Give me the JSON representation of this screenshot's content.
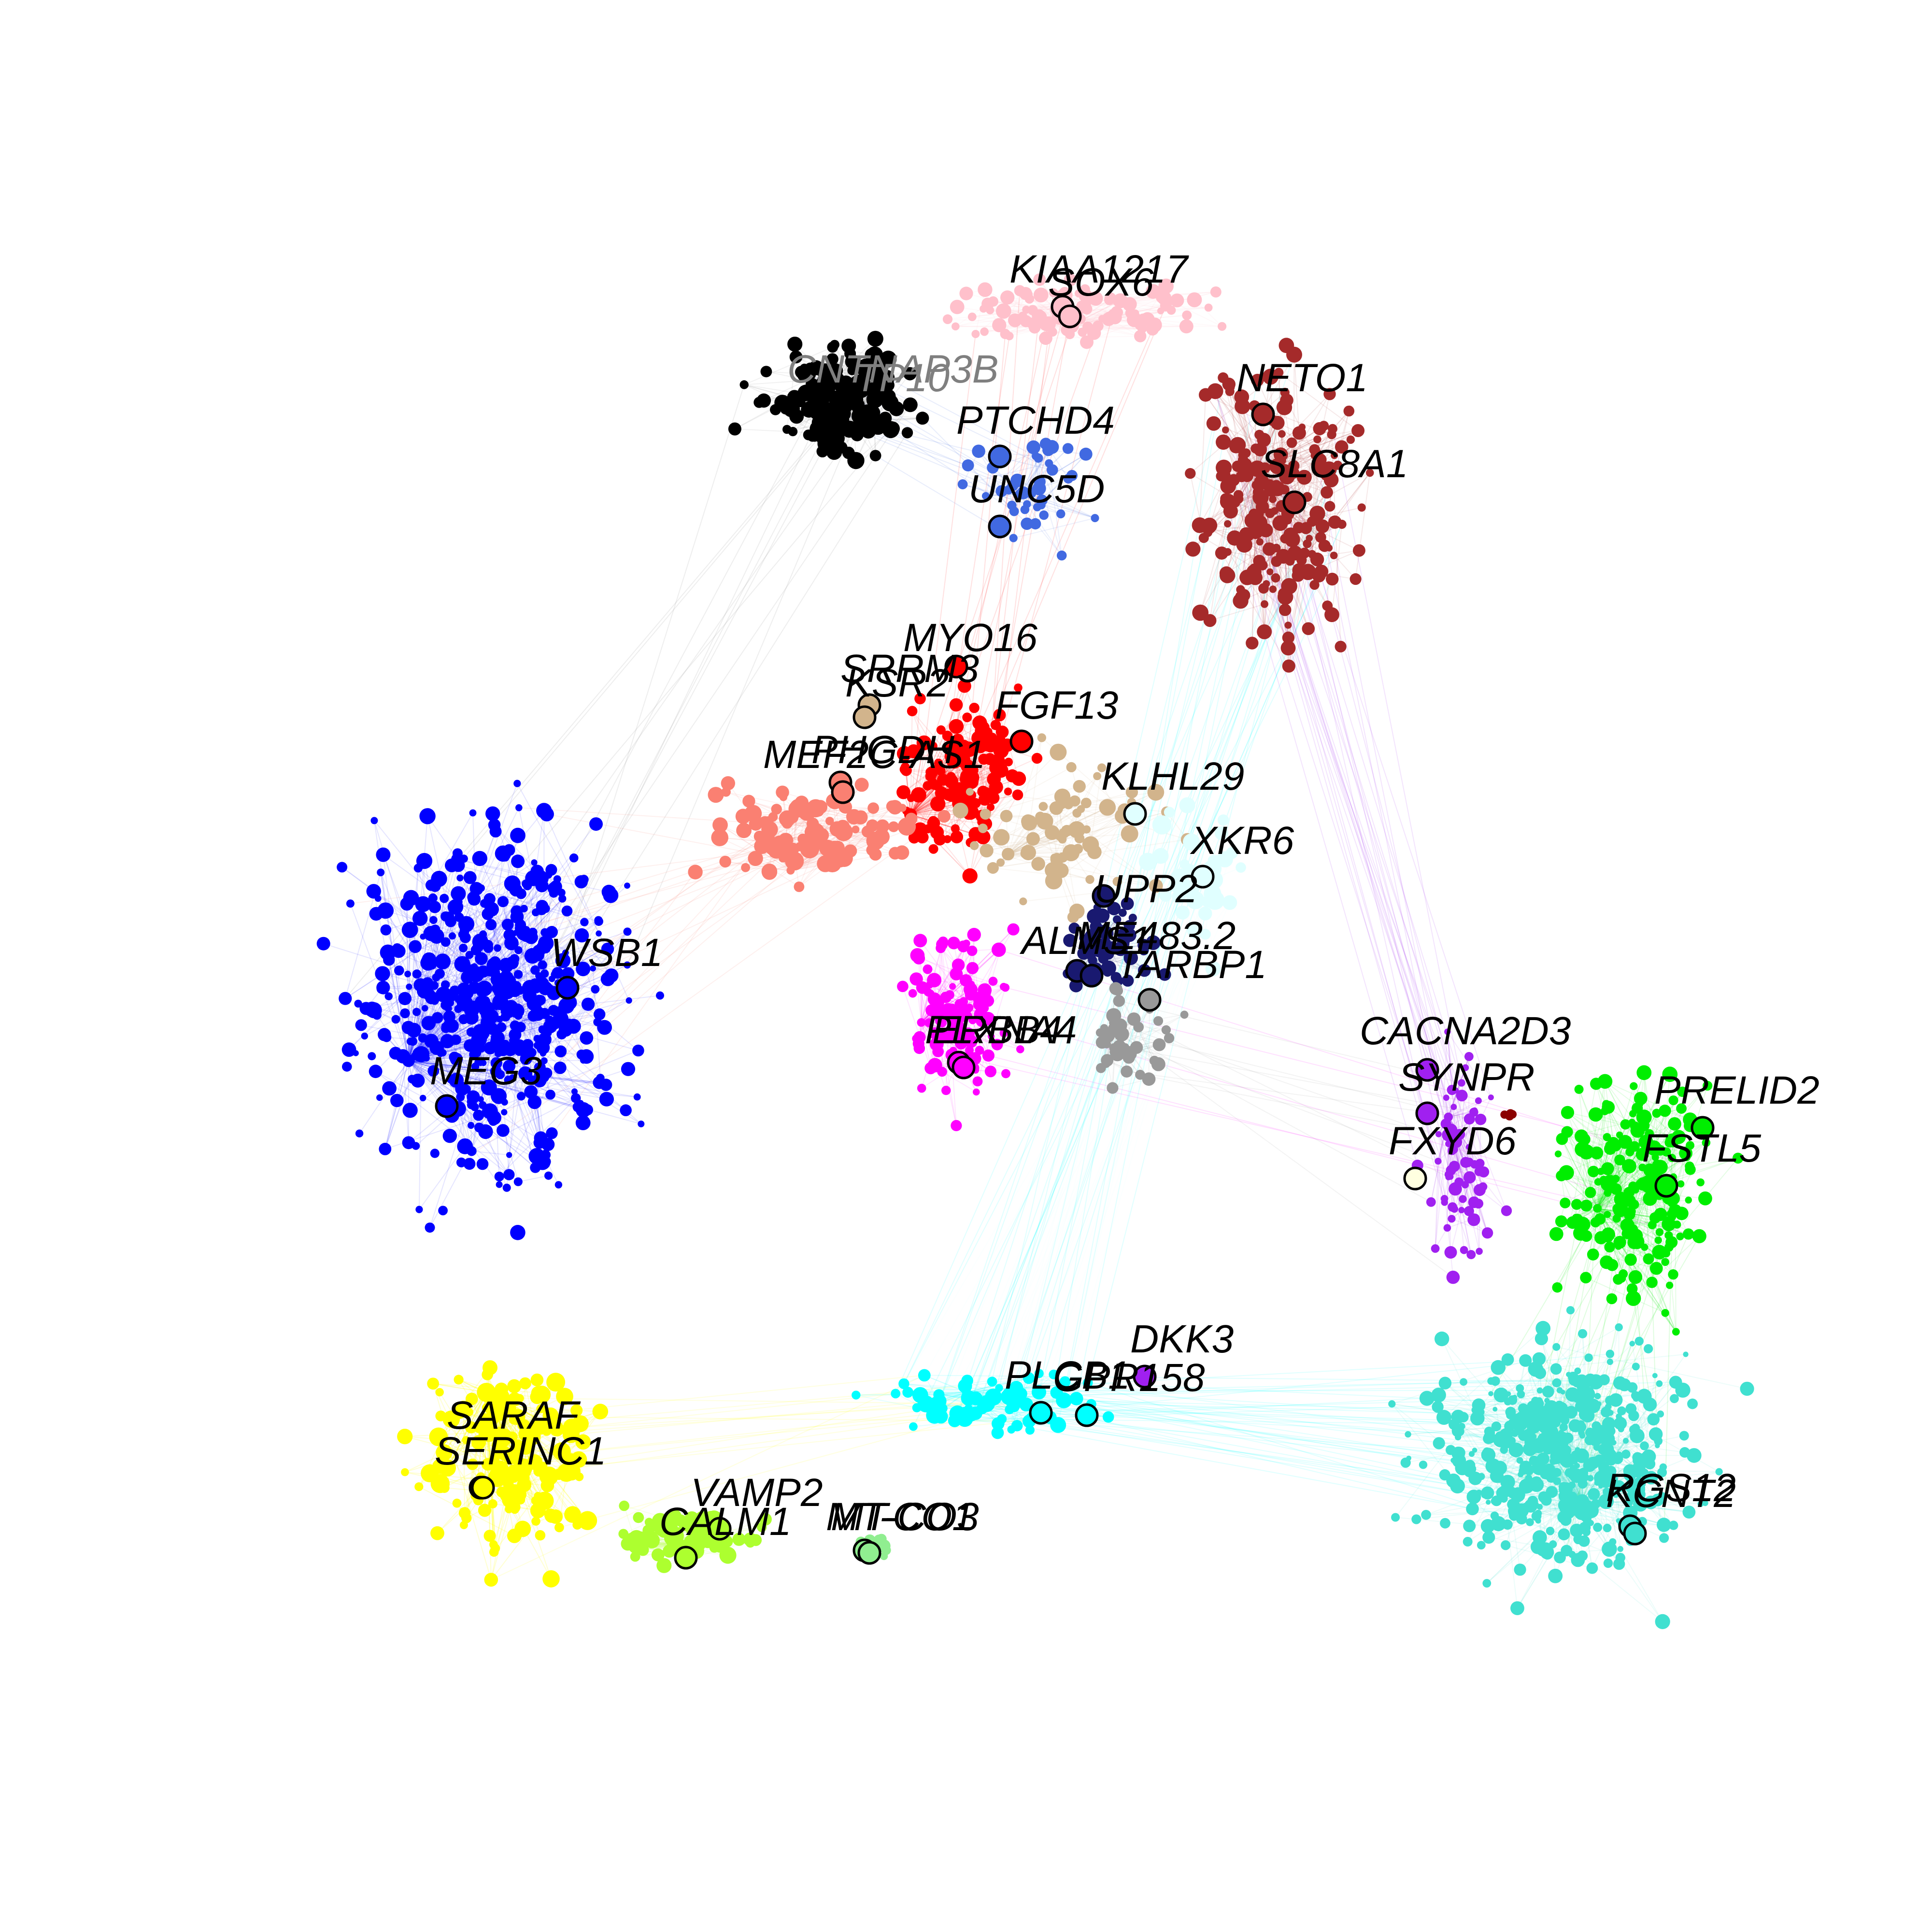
{
  "diagram": {
    "type": "gene-coexpression-network",
    "modules": [
      {
        "name": "black",
        "color": "#000000"
      },
      {
        "name": "pink",
        "color": "#ffc0cb"
      },
      {
        "name": "brown",
        "color": "#a52a2a"
      },
      {
        "name": "royalblue",
        "color": "#4169e1"
      },
      {
        "name": "cyan",
        "color": "#00ffff"
      },
      {
        "name": "red",
        "color": "#ff0000"
      },
      {
        "name": "tan",
        "color": "#d2b48c"
      },
      {
        "name": "salmon",
        "color": "#fa8072"
      },
      {
        "name": "midnightblue",
        "color": "#191970"
      },
      {
        "name": "lightcyan",
        "color": "#e0ffff"
      },
      {
        "name": "magenta",
        "color": "#ff00ff"
      },
      {
        "name": "grey60",
        "color": "#999999"
      },
      {
        "name": "blue",
        "color": "#0000ff"
      },
      {
        "name": "yellow",
        "color": "#ffff00"
      },
      {
        "name": "greenyellow",
        "color": "#adff2f"
      },
      {
        "name": "lightgreen",
        "color": "#90ee90"
      },
      {
        "name": "purple",
        "color": "#a020f0"
      },
      {
        "name": "green",
        "color": "#00ee00"
      },
      {
        "name": "turquoise",
        "color": "#40e0d0"
      },
      {
        "name": "lightyellow",
        "color": "#ffffe0"
      },
      {
        "name": "darkred",
        "color": "#8b0000"
      }
    ],
    "hub_genes": [
      {
        "label": "KIAA1217",
        "module": "pink"
      },
      {
        "label": "SOX6",
        "module": "pink"
      },
      {
        "label": "NETO1",
        "module": "brown"
      },
      {
        "label": "SLC8A1",
        "module": "brown"
      },
      {
        "label": "CNTNAP3B",
        "module": "black"
      },
      {
        "label": "TP10",
        "module": "black"
      },
      {
        "label": "PTCHD4",
        "module": "royalblue"
      },
      {
        "label": "UNC5D",
        "module": "royalblue"
      },
      {
        "label": "MYO16",
        "module": "red"
      },
      {
        "label": "SRRM3",
        "module": "tan"
      },
      {
        "label": "KSR2",
        "module": "tan"
      },
      {
        "label": "FGF13",
        "module": "red"
      },
      {
        "label": "PHGDH",
        "module": "salmon"
      },
      {
        "label": "MEF2C-AS1",
        "module": "salmon"
      },
      {
        "label": "KLHL29",
        "module": "lightcyan"
      },
      {
        "label": "XKR6",
        "module": "lightcyan"
      },
      {
        "label": "UPP2",
        "module": "midnightblue"
      },
      {
        "label": "ALMS1",
        "module": "midnightblue"
      },
      {
        "label": "ME483.2",
        "module": "midnightblue"
      },
      {
        "label": "TARBP1",
        "module": "grey60"
      },
      {
        "label": "WSB1",
        "module": "blue"
      },
      {
        "label": "MEG3",
        "module": "blue"
      },
      {
        "label": "ERBB4",
        "module": "magenta"
      },
      {
        "label": "PLXNA4",
        "module": "magenta"
      },
      {
        "label": "CACNA2D3",
        "module": "purple"
      },
      {
        "label": "SYNPR",
        "module": "purple"
      },
      {
        "label": "FXYD6",
        "module": "lightyellow"
      },
      {
        "label": "PRELID2",
        "module": "green"
      },
      {
        "label": "FSTL5",
        "module": "green"
      },
      {
        "label": "DKK3",
        "module": "purple"
      },
      {
        "label": "PLCB1",
        "module": "cyan"
      },
      {
        "label": "GPR158",
        "module": "cyan"
      },
      {
        "label": "SARAF",
        "module": "yellow"
      },
      {
        "label": "SERINC1",
        "module": "yellow"
      },
      {
        "label": "VAMP2",
        "module": "greenyellow"
      },
      {
        "label": "CALM1",
        "module": "greenyellow"
      },
      {
        "label": "MT-CO1",
        "module": "lightgreen"
      },
      {
        "label": "MT-CO3",
        "module": "lightgreen"
      },
      {
        "label": "RGS12",
        "module": "turquoise"
      },
      {
        "label": "KCNT2",
        "module": "turquoise"
      }
    ]
  }
}
